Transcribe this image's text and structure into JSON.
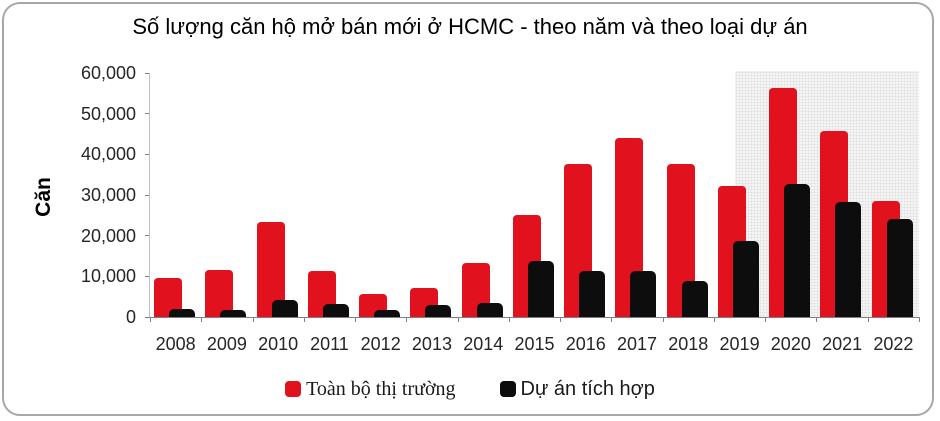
{
  "chart_data": {
    "type": "bar",
    "title": "Số lượng căn hộ mở bán mới ở HCMC - theo năm và theo loại dự án",
    "ylabel": "Căn",
    "xlabel": "",
    "categories": [
      "2008",
      "2009",
      "2010",
      "2011",
      "2012",
      "2013",
      "2014",
      "2015",
      "2016",
      "2017",
      "2018",
      "2019",
      "2020",
      "2021",
      "2022"
    ],
    "series": [
      {
        "name": "Toàn bộ thị trường",
        "color": "#e2111e",
        "values": [
          9700,
          11500,
          23300,
          11400,
          5600,
          7100,
          13400,
          25200,
          37500,
          44100,
          37500,
          32200,
          56200,
          45700,
          28600
        ]
      },
      {
        "name": "Dự án tích hợp",
        "color": "#0d0d0d",
        "values": [
          2000,
          1700,
          4100,
          3300,
          1700,
          3000,
          3400,
          13700,
          11400,
          11400,
          8900,
          18800,
          32800,
          28200,
          24000
        ]
      }
    ],
    "ylim": [
      0,
      60000
    ],
    "y_ticks": [
      {
        "value": 0,
        "label": "0"
      },
      {
        "value": 10000,
        "label": "10,000"
      },
      {
        "value": 20000,
        "label": "20,000"
      },
      {
        "value": 30000,
        "label": "30,000"
      },
      {
        "value": 40000,
        "label": "40,000"
      },
      {
        "value": 50000,
        "label": "50,000"
      },
      {
        "value": 60000,
        "label": "60,000"
      }
    ],
    "grid": "off",
    "legend_position": "bottom",
    "highlight_region": {
      "from": "2019",
      "to": "2022",
      "fill": "#ececec",
      "style": "dotted-halftone"
    }
  }
}
